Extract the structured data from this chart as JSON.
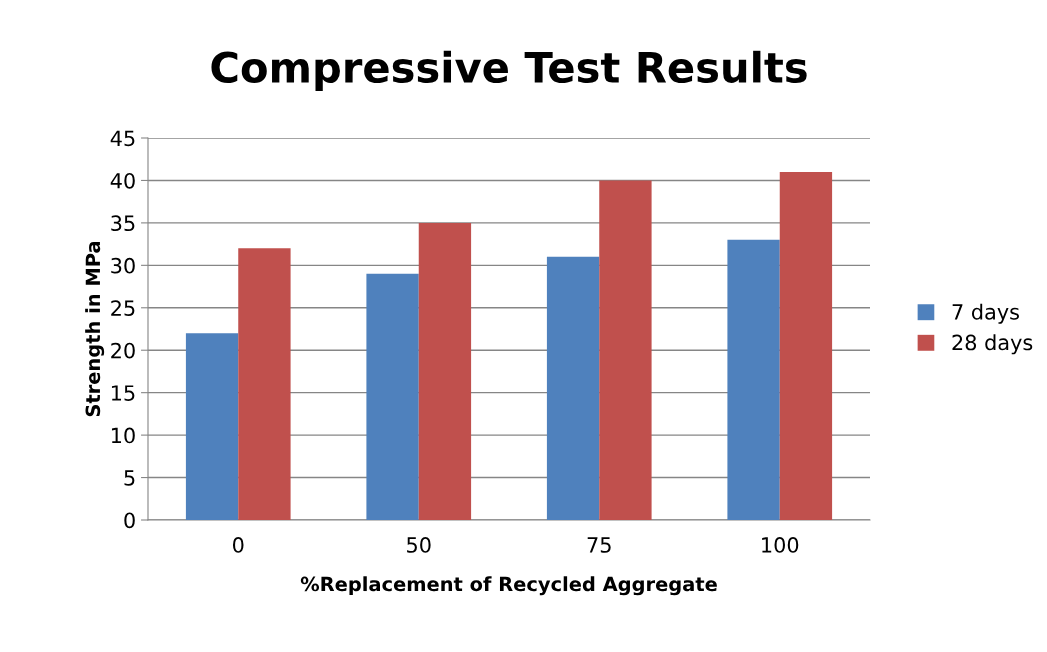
{
  "chart_data": {
    "type": "bar",
    "title": "Compressive Test Results",
    "xlabel": "%Replacement of Recycled Aggregate",
    "ylabel": "Strength in MPa",
    "categories": [
      "0",
      "50",
      "75",
      "100"
    ],
    "series": [
      {
        "name": "7 days",
        "color": "#4f81bd",
        "values": [
          22,
          29,
          31,
          33
        ]
      },
      {
        "name": "28 days",
        "color": "#c0504d",
        "values": [
          32,
          35,
          40,
          41
        ]
      }
    ],
    "ylim": [
      0,
      45
    ],
    "yticks": [
      0,
      5,
      10,
      15,
      20,
      25,
      30,
      35,
      40,
      45
    ],
    "grid": "y",
    "legend": "right"
  }
}
